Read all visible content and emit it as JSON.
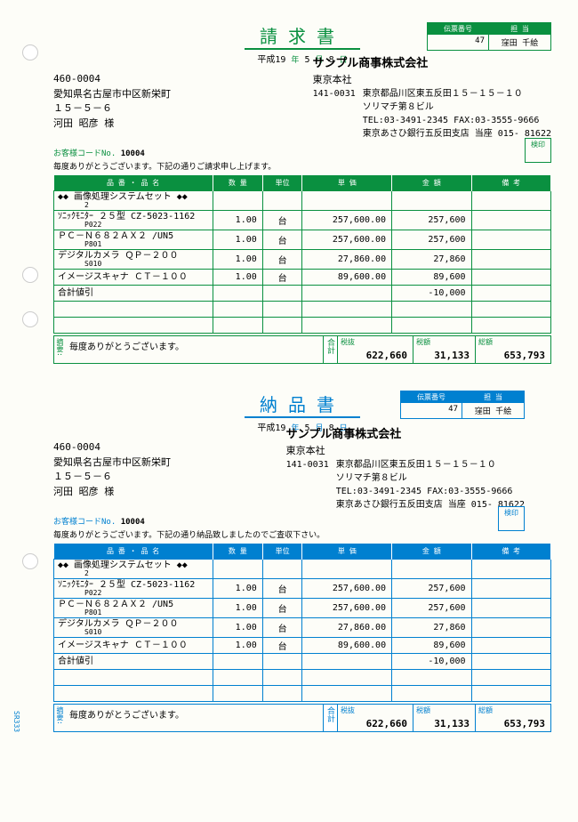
{
  "invoice": {
    "title": "請求書",
    "date_era": "平成19",
    "date_y": "年",
    "date_m": "5",
    "date_m_lbl": "月",
    "date_d": "8",
    "date_d_lbl": "日",
    "slip_hdr": "伝票番号",
    "slip_no": "47",
    "person_hdr": "担  当",
    "person": "窪田 千絵",
    "cust_post": "460-0004",
    "cust_addr": "愛知県名古屋市中区新栄町",
    "cust_addr2": "１５－５－６",
    "cust_name": "河田 昭彦 様",
    "co_name": "サンプル商事株式会社",
    "co_office": "東京本社",
    "co_post": "141-0031",
    "co_addr1": "東京都品川区東五反田１５－１５－１０",
    "co_addr2": "ソリマチ第８ビル",
    "co_tel": "TEL:03-3491-2345    FAX:03-3555-9666",
    "co_bank": "東京あさひ銀行五反田支店 当座    015- 81622",
    "stamp_lbl": "検印",
    "code_lbl": "お客様コードNo.",
    "code": "10004",
    "greet": "毎度ありがとうございます。下記の通りご請求申し上げます。",
    "col_name": "品  番  ・  品  名",
    "col_qty": "数  量",
    "col_unit": "単位",
    "col_price": "単  価",
    "col_amt": "金  額",
    "col_note": "備  考",
    "rows": [
      {
        "name": "◆◆ 画像処理システムセット ◆◆",
        "code": "2",
        "qty": "",
        "unit": "",
        "price": "",
        "amt": ""
      },
      {
        "name": "ｿﾆｯｸﾓﾆﾀｰ ２５型 CZ-5023-1162",
        "code": "P022",
        "qty": "1.00",
        "unit": "台",
        "price": "257,600.00",
        "amt": "257,600"
      },
      {
        "name": "ＰＣ－Ｎ６８２ＡＸ２ /UN5",
        "code": "P801",
        "qty": "1.00",
        "unit": "台",
        "price": "257,600.00",
        "amt": "257,600"
      },
      {
        "name": "デジタルカメラ ＱＰ－２００",
        "code": "S010",
        "qty": "1.00",
        "unit": "台",
        "price": "27,860.00",
        "amt": "27,860"
      },
      {
        "name": "イメージスキャナ ＣＴ－１００",
        "code": "",
        "qty": "1.00",
        "unit": "台",
        "price": "89,600.00",
        "amt": "89,600"
      },
      {
        "name": "合計値引",
        "code": "",
        "qty": "",
        "unit": "",
        "price": "",
        "amt": "-10,000"
      },
      {
        "name": "",
        "code": "",
        "qty": "",
        "unit": "",
        "price": "",
        "amt": ""
      },
      {
        "name": "",
        "code": "",
        "qty": "",
        "unit": "",
        "price": "",
        "amt": ""
      }
    ],
    "msg_lbl": "摘要:",
    "msg": "毎度ありがとうございます。",
    "tot_lbl": "合計",
    "sub_lbl": "税抜",
    "sub": "622,660",
    "tax_lbl": "税額",
    "tax": "31,133",
    "ttl_lbl": "総額",
    "ttl": "653,793"
  },
  "delivery": {
    "title": "納品書",
    "date_era": "平成19",
    "date_y": "年",
    "date_m": "5",
    "date_m_lbl": "月",
    "date_d": "8",
    "date_d_lbl": "日",
    "slip_hdr": "伝票番号",
    "slip_no": "47",
    "person_hdr": "担  当",
    "person": "窪田 千絵",
    "cust_post": "460-0004",
    "cust_addr": "愛知県名古屋市中区新栄町",
    "cust_addr2": "１５－５－６",
    "cust_name": "河田 昭彦 様",
    "co_name": "サンプル商事株式会社",
    "co_office": "東京本社",
    "co_post": "141-0031",
    "co_addr1": "東京都品川区東五反田１５－１５－１０",
    "co_addr2": "ソリマチ第８ビル",
    "co_tel": "TEL:03-3491-2345    FAX:03-3555-9666",
    "co_bank": "東京あさひ銀行五反田支店 当座    015- 81622",
    "stamp_lbl": "検印",
    "code_lbl": "お客様コードNo.",
    "code": "10004",
    "greet": "毎度ありがとうございます。下記の通り納品致しましたのでご査収下さい。",
    "col_name": "品  番  ・  品  名",
    "col_qty": "数  量",
    "col_unit": "単位",
    "col_price": "単  価",
    "col_amt": "金  額",
    "col_note": "備  考",
    "rows": [
      {
        "name": "◆◆ 画像処理システムセット ◆◆",
        "code": "2",
        "qty": "",
        "unit": "",
        "price": "",
        "amt": ""
      },
      {
        "name": "ｿﾆｯｸﾓﾆﾀｰ ２５型 CZ-5023-1162",
        "code": "P022",
        "qty": "1.00",
        "unit": "台",
        "price": "257,600.00",
        "amt": "257,600"
      },
      {
        "name": "ＰＣ－Ｎ６８２ＡＸ２ /UN5",
        "code": "P801",
        "qty": "1.00",
        "unit": "台",
        "price": "257,600.00",
        "amt": "257,600"
      },
      {
        "name": "デジタルカメラ ＱＰ－２００",
        "code": "S010",
        "qty": "1.00",
        "unit": "台",
        "price": "27,860.00",
        "amt": "27,860"
      },
      {
        "name": "イメージスキャナ ＣＴ－１００",
        "code": "",
        "qty": "1.00",
        "unit": "台",
        "price": "89,600.00",
        "amt": "89,600"
      },
      {
        "name": "合計値引",
        "code": "",
        "qty": "",
        "unit": "",
        "price": "",
        "amt": "-10,000"
      },
      {
        "name": "",
        "code": "",
        "qty": "",
        "unit": "",
        "price": "",
        "amt": ""
      },
      {
        "name": "",
        "code": "",
        "qty": "",
        "unit": "",
        "price": "",
        "amt": ""
      }
    ],
    "msg_lbl": "摘要:",
    "msg": "毎度ありがとうございます。",
    "tot_lbl": "合計",
    "sub_lbl": "税抜",
    "sub": "622,660",
    "tax_lbl": "税額",
    "tax": "31,133",
    "ttl_lbl": "総額",
    "ttl": "653,793"
  },
  "form_code": "SR333"
}
